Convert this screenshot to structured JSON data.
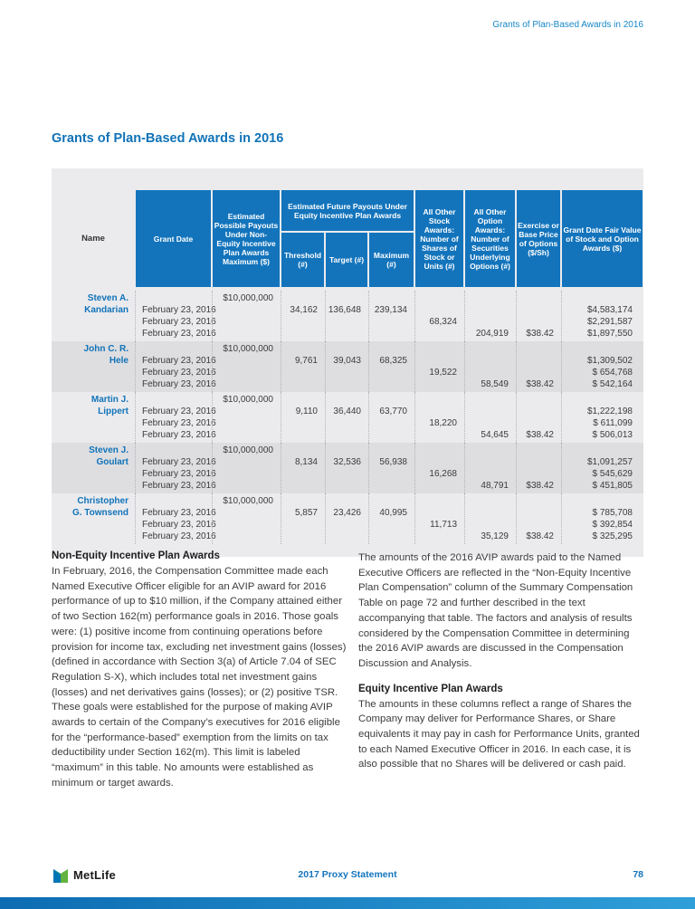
{
  "page": {
    "running_header": "Grants of Plan-Based Awards in 2016",
    "title": "Grants of Plan-Based Awards in 2016"
  },
  "colors": {
    "brand_blue": "#1374bc",
    "running_header_blue": "#1787c8",
    "logo_green": "#62b33f",
    "table_bg": "#ebebee",
    "row_shade": "#dedee1"
  },
  "table": {
    "headers": {
      "name": "Name",
      "grant_date": "Grant Date",
      "non_equity_max": "Estimated Possible Payouts Under Non-Equity Incentive Plan Awards Maximum ($)",
      "equity_group": "Estimated Future Payouts Under Equity Incentive Plan Awards",
      "threshold": "Threshold (#)",
      "target": "Target (#)",
      "maximum": "Maximum (#)",
      "stock_awards": "All Other Stock Awards: Number of Shares of Stock or Units (#)",
      "option_awards": "All Other Option Awards: Number of Securities Underlying Options (#)",
      "exercise_price": "Exercise or Base Price of Options ($/Sh)",
      "fair_value": "Grant Date Fair Value of Stock and Option Awards ($)"
    },
    "blocks": [
      {
        "name_line1": "Steven A.",
        "name_line2": "Kandarian",
        "non_equity_max": "$10,000,000",
        "date1": "February 23, 2016",
        "date2": "February 23, 2016",
        "date3": "February 23, 2016",
        "threshold": "34,162",
        "target": "136,648",
        "maximum": "239,134",
        "stock_awards": "68,324",
        "option_awards": "204,919",
        "exercise_price": "$38.42",
        "fair_value1": "$4,583,174",
        "fair_value2": "$2,291,587",
        "fair_value3": "$1,897,550"
      },
      {
        "name_line1": "John C. R.",
        "name_line2": "Hele",
        "non_equity_max": "$10,000,000",
        "date1": "February 23, 2016",
        "date2": "February 23, 2016",
        "date3": "February 23, 2016",
        "threshold": "9,761",
        "target": "39,043",
        "maximum": "68,325",
        "stock_awards": "19,522",
        "option_awards": "58,549",
        "exercise_price": "$38.42",
        "fair_value1": "$1,309,502",
        "fair_value2": "$ 654,768",
        "fair_value3": "$ 542,164"
      },
      {
        "name_line1": "Martin J.",
        "name_line2": "Lippert",
        "non_equity_max": "$10,000,000",
        "date1": "February 23, 2016",
        "date2": "February 23, 2016",
        "date3": "February 23, 2016",
        "threshold": "9,110",
        "target": "36,440",
        "maximum": "63,770",
        "stock_awards": "18,220",
        "option_awards": "54,645",
        "exercise_price": "$38.42",
        "fair_value1": "$1,222,198",
        "fair_value2": "$ 611,099",
        "fair_value3": "$ 506,013"
      },
      {
        "name_line1": "Steven J.",
        "name_line2": "Goulart",
        "non_equity_max": "$10,000,000",
        "date1": "February 23, 2016",
        "date2": "February 23, 2016",
        "date3": "February 23, 2016",
        "threshold": "8,134",
        "target": "32,536",
        "maximum": "56,938",
        "stock_awards": "16,268",
        "option_awards": "48,791",
        "exercise_price": "$38.42",
        "fair_value1": "$1,091,257",
        "fair_value2": "$ 545,629",
        "fair_value3": "$ 451,805"
      },
      {
        "name_line1": "Christopher",
        "name_line2": "G. Townsend",
        "non_equity_max": "$10,000,000",
        "date1": "February 23, 2016",
        "date2": "February 23, 2016",
        "date3": "February 23, 2016",
        "threshold": "5,857",
        "target": "23,426",
        "maximum": "40,995",
        "stock_awards": "11,713",
        "option_awards": "35,129",
        "exercise_price": "$38.42",
        "fair_value1": "$ 785,708",
        "fair_value2": "$ 392,854",
        "fair_value3": "$ 325,295"
      }
    ]
  },
  "sections": {
    "left": {
      "heading": "Non-Equity Incentive Plan Awards",
      "body": "In February, 2016, the Compensation Committee made each Named Executive Officer eligible for an AVIP award for 2016 performance of up to $10 million, if the Company attained either of two Section 162(m) performance goals in 2016. Those goals were: (1) positive income from continuing operations before provision for income tax, excluding net investment gains (losses) (defined in accordance with Section 3(a) of Article 7.04 of SEC Regulation S-X), which includes total net investment gains (losses) and net derivatives gains (losses); or (2) positive TSR. These goals were established for the purpose of making AVIP awards to certain of the Company’s executives for 2016 eligible for the “performance-based” exemption from the limits on tax deductibility under Section 162(m). This limit is labeled “maximum” in this table. No amounts were established as minimum or target awards."
    },
    "right": {
      "para1": "The amounts of the 2016 AVIP awards paid to the Named Executive Officers are reflected in the “Non-Equity Incentive Plan Compensation” column of the Summary Compensation Table on page 72 and further described in the text accompanying that table. The factors and analysis of results considered by the Compensation Committee in determining the 2016 AVIP awards are discussed in the Compensation Discussion and Analysis.",
      "heading": "Equity Incentive Plan Awards",
      "para2": "The amounts in these columns reflect a range of Shares the Company may deliver for Performance Shares, or Share equivalents it may pay in cash for Performance Units, granted to each Named Executive Officer in 2016. In each case, it is also possible that no Shares will be delivered or cash paid."
    }
  },
  "footer": {
    "brand": "MetLife",
    "center": "2017 Proxy Statement",
    "page_number": "78"
  }
}
